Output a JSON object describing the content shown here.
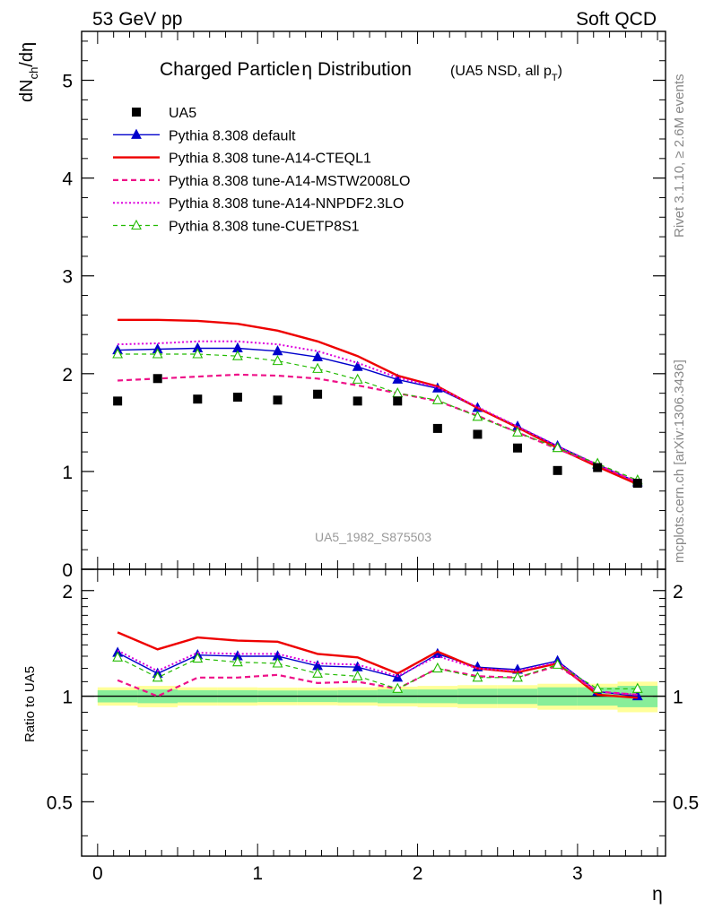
{
  "header": {
    "left": "53 GeV pp",
    "right": "Soft QCD"
  },
  "side_labels": {
    "rivet": "Rivet 3.1.10, ≥ 2.6M events",
    "mcplots": "mcplots.cern.ch [arXiv:1306.3436]"
  },
  "watermark": "UA5_1982_S875503",
  "chart_data": [
    {
      "type": "line",
      "title_main": "Charged Particle",
      "title_eta": "η",
      "title_rest": " Distribution",
      "title_sub": "(UA5 NSD, all p",
      "title_sub_index": "T",
      "title_sub_close": ")",
      "ylabel": "dN",
      "ylabel_sub": "ch",
      "ylabel_rest": "/dη",
      "xlabel": "η",
      "xlim": [
        -0.1,
        3.55
      ],
      "ylim": [
        0,
        5.5
      ],
      "yticks": [
        0,
        1,
        2,
        3,
        4,
        5
      ],
      "ytick_labels": [
        "0",
        "1",
        "2",
        "3",
        "4",
        "5"
      ],
      "x": [
        0.125,
        0.375,
        0.625,
        0.875,
        1.125,
        1.375,
        1.625,
        1.875,
        2.125,
        2.375,
        2.625,
        2.875,
        3.125,
        3.375
      ],
      "data": {
        "name": "UA5",
        "values": [
          1.72,
          1.95,
          1.74,
          1.76,
          1.73,
          1.79,
          1.72,
          1.72,
          1.44,
          1.38,
          1.24,
          1.01,
          1.04,
          0.88
        ]
      },
      "series": [
        {
          "name": "Pythia 8.308 default",
          "color": "#0000cc",
          "style": "solid",
          "marker": "triangle-filled",
          "values": [
            2.24,
            2.25,
            2.26,
            2.26,
            2.23,
            2.17,
            2.07,
            1.94,
            1.85,
            1.65,
            1.46,
            1.26,
            1.07,
            0.89
          ]
        },
        {
          "name": "Pythia 8.308 tune-A14-CTEQL1",
          "color": "#ee0000",
          "style": "solid-thick",
          "marker": "none",
          "values": [
            2.55,
            2.55,
            2.54,
            2.51,
            2.44,
            2.33,
            2.18,
            1.98,
            1.87,
            1.65,
            1.45,
            1.24,
            1.05,
            0.87
          ]
        },
        {
          "name": "Pythia 8.308 tune-A14-MSTW2008LO",
          "color": "#ee1188",
          "style": "dashed",
          "marker": "none",
          "values": [
            1.93,
            1.95,
            1.97,
            1.99,
            1.98,
            1.95,
            1.88,
            1.8,
            1.72,
            1.57,
            1.4,
            1.23,
            1.07,
            0.89
          ]
        },
        {
          "name": "Pythia 8.308 tune-A14-NNPDF2.3LO",
          "color": "#dd00dd",
          "style": "dotted",
          "marker": "none",
          "values": [
            2.3,
            2.31,
            2.33,
            2.33,
            2.3,
            2.23,
            2.11,
            1.96,
            1.86,
            1.66,
            1.46,
            1.26,
            1.07,
            0.89
          ]
        },
        {
          "name": "Pythia 8.308 tune-CUETP8S1",
          "color": "#22bb00",
          "style": "dashed-thin",
          "marker": "triangle-open",
          "values": [
            2.2,
            2.2,
            2.2,
            2.18,
            2.13,
            2.05,
            1.94,
            1.8,
            1.73,
            1.56,
            1.4,
            1.24,
            1.08,
            0.91
          ]
        }
      ],
      "legend_placement": "top-left",
      "grid": false
    },
    {
      "type": "line",
      "ylabel": "Ratio to UA5",
      "xlabel": "η",
      "xlim": [
        -0.1,
        3.55
      ],
      "ylim": [
        0.35,
        2.3
      ],
      "yticks": [
        0.5,
        1,
        2
      ],
      "ytick_labels": [
        "0.5",
        "1",
        "2"
      ],
      "xticks": [
        0,
        1,
        2,
        3
      ],
      "xtick_labels": [
        "0",
        "1",
        "2",
        "3"
      ],
      "reference_line": 1,
      "uncertainty_bands": {
        "inner_color": "#88ee99",
        "outer_color": "#ffff99",
        "inner_halfwidth": [
          0.04,
          0.045,
          0.04,
          0.04,
          0.038,
          0.038,
          0.04,
          0.045,
          0.045,
          0.05,
          0.05,
          0.06,
          0.06,
          0.07
        ],
        "outer_halfwidth": [
          0.06,
          0.07,
          0.06,
          0.06,
          0.058,
          0.058,
          0.06,
          0.065,
          0.07,
          0.075,
          0.075,
          0.085,
          0.085,
          0.1
        ]
      },
      "series": [
        {
          "name": "Pythia 8.308 default",
          "values": [
            1.33,
            1.16,
            1.31,
            1.3,
            1.3,
            1.22,
            1.21,
            1.13,
            1.32,
            1.21,
            1.19,
            1.26,
            1.03,
            1.0
          ]
        },
        {
          "name": "Pythia 8.308 tune-A14-CTEQL1",
          "values": [
            1.52,
            1.36,
            1.47,
            1.44,
            1.43,
            1.32,
            1.29,
            1.16,
            1.34,
            1.2,
            1.17,
            1.24,
            1.01,
            0.99
          ]
        },
        {
          "name": "Pythia 8.308 tune-A14-MSTW2008LO",
          "values": [
            1.11,
            1.0,
            1.13,
            1.13,
            1.15,
            1.09,
            1.1,
            1.05,
            1.2,
            1.14,
            1.13,
            1.22,
            1.03,
            1.01
          ]
        },
        {
          "name": "Pythia 8.308 tune-A14-NNPDF2.3LO",
          "values": [
            1.35,
            1.18,
            1.33,
            1.32,
            1.32,
            1.24,
            1.23,
            1.14,
            1.3,
            1.2,
            1.18,
            1.25,
            1.03,
            1.01
          ]
        },
        {
          "name": "Pythia 8.308 tune-CUETP8S1",
          "values": [
            1.29,
            1.13,
            1.28,
            1.25,
            1.24,
            1.16,
            1.14,
            1.05,
            1.2,
            1.13,
            1.13,
            1.23,
            1.05,
            1.05
          ]
        }
      ]
    }
  ]
}
